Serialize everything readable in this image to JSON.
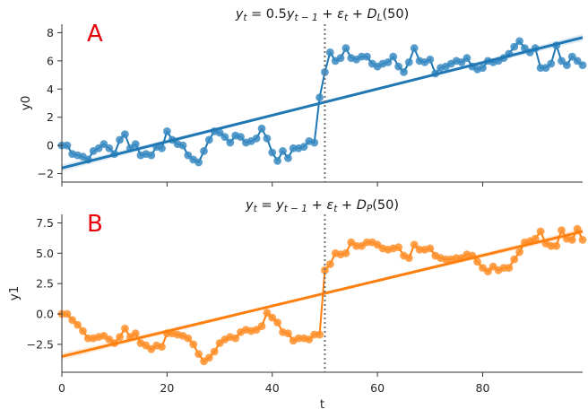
{
  "chart_data": [
    {
      "type": "line",
      "panel_label": "A",
      "title": "y_t = 0.5y_{t-1} + ε_t + D_L(50)",
      "title_parts": [
        "y",
        "t",
        " = 0.5",
        "y",
        "t − 1",
        " + ",
        "ε",
        "t",
        " + ",
        "D",
        "L",
        "(50)"
      ],
      "xlabel": "",
      "ylabel": "y0",
      "xlim": [
        0,
        99
      ],
      "ylim": [
        -2.6,
        8.6
      ],
      "xticks": [
        0,
        20,
        40,
        60,
        80
      ],
      "yticks": [
        -2,
        0,
        2,
        4,
        6,
        8
      ],
      "ytick_labels": [
        "−2",
        "0",
        "2",
        "4",
        "6",
        "8"
      ],
      "vline_x": 50,
      "color": "#1f77b4",
      "marker_color": "#3a8bc2",
      "panel_label_color": "#e8000b",
      "series": [
        {
          "x": [
            0,
            1,
            2,
            3,
            4,
            5,
            6,
            7,
            8,
            9,
            10,
            11,
            12,
            13,
            14,
            15,
            16,
            17,
            18,
            19,
            20,
            21,
            22,
            23,
            24,
            25,
            26,
            27,
            28,
            29,
            30,
            31,
            32,
            33,
            34,
            35,
            36,
            37,
            38,
            39,
            40,
            41,
            42,
            43,
            44,
            45,
            46,
            47,
            48,
            49,
            50,
            51,
            52,
            53,
            54,
            55,
            56,
            57,
            58,
            59,
            60,
            61,
            62,
            63,
            64,
            65,
            66,
            67,
            68,
            69,
            70,
            71,
            72,
            73,
            74,
            75,
            76,
            77,
            78,
            79,
            80,
            81,
            82,
            83,
            84,
            85,
            86,
            87,
            88,
            89,
            90,
            91,
            92,
            93,
            94,
            95,
            96,
            97,
            98,
            99
          ],
          "values": [
            0.0,
            0.0,
            -0.6,
            -0.7,
            -0.8,
            -1.0,
            -0.4,
            -0.2,
            0.1,
            -0.2,
            -0.6,
            0.4,
            0.8,
            -0.2,
            0.1,
            -0.7,
            -0.6,
            -0.7,
            -0.1,
            -0.2,
            1.0,
            0.4,
            0.1,
            0.0,
            -0.7,
            -1.0,
            -1.2,
            -0.4,
            0.4,
            1.0,
            0.9,
            0.6,
            0.2,
            0.7,
            0.6,
            0.2,
            0.3,
            0.5,
            1.2,
            0.5,
            -0.5,
            -1.1,
            -0.4,
            -0.9,
            -0.2,
            -0.2,
            -0.1,
            0.3,
            0.2,
            3.4,
            5.2,
            6.6,
            6.0,
            6.2,
            6.9,
            6.2,
            6.1,
            6.3,
            6.3,
            5.8,
            5.6,
            5.8,
            5.9,
            6.3,
            5.6,
            5.2,
            5.9,
            6.9,
            6.0,
            5.9,
            6.1,
            5.1,
            5.5,
            5.6,
            5.8,
            6.0,
            5.9,
            6.2,
            5.6,
            5.4,
            5.5,
            6.0,
            5.9,
            6.0,
            6.2,
            6.5,
            7.0,
            7.4,
            6.9,
            6.6,
            6.9,
            5.5,
            5.5,
            5.8,
            7.1,
            6.0,
            5.7,
            6.3,
            6.0,
            5.7
          ]
        }
      ],
      "regression": {
        "intercept": -1.6,
        "slope": 0.0935,
        "band": 0.25
      }
    },
    {
      "type": "line",
      "panel_label": "B",
      "title": "y_t = y_{t-1} + ε_t + D_P(50)",
      "title_parts": [
        "y",
        "t",
        " = ",
        "y",
        "t − 1",
        " + ",
        "ε",
        "t",
        " + ",
        "D",
        "P",
        "(50)"
      ],
      "xlabel": "t",
      "ylabel": "y1",
      "xlim": [
        0,
        99
      ],
      "ylim": [
        -4.8,
        8.2
      ],
      "xticks": [
        0,
        20,
        40,
        60,
        80
      ],
      "yticks": [
        -2.5,
        0.0,
        2.5,
        5.0,
        7.5
      ],
      "ytick_labels": [
        "−2.5",
        "0.0",
        "2.5",
        "5.0",
        "7.5"
      ],
      "vline_x": 50,
      "color": "#ff7f0e",
      "marker_color": "#ff8f2a",
      "panel_label_color": "#e8000b",
      "series": [
        {
          "x": [
            0,
            1,
            2,
            3,
            4,
            5,
            6,
            7,
            8,
            9,
            10,
            11,
            12,
            13,
            14,
            15,
            16,
            17,
            18,
            19,
            20,
            21,
            22,
            23,
            24,
            25,
            26,
            27,
            28,
            29,
            30,
            31,
            32,
            33,
            34,
            35,
            36,
            37,
            38,
            39,
            40,
            41,
            42,
            43,
            44,
            45,
            46,
            47,
            48,
            49,
            50,
            51,
            52,
            53,
            54,
            55,
            56,
            57,
            58,
            59,
            60,
            61,
            62,
            63,
            64,
            65,
            66,
            67,
            68,
            69,
            70,
            71,
            72,
            73,
            74,
            75,
            76,
            77,
            78,
            79,
            80,
            81,
            82,
            83,
            84,
            85,
            86,
            87,
            88,
            89,
            90,
            91,
            92,
            93,
            94,
            95,
            96,
            97,
            98,
            99
          ],
          "values": [
            0.0,
            0.0,
            -0.5,
            -0.9,
            -1.4,
            -2.0,
            -2.0,
            -1.9,
            -1.8,
            -2.1,
            -2.4,
            -1.9,
            -1.2,
            -1.9,
            -1.6,
            -2.4,
            -2.6,
            -2.9,
            -2.6,
            -2.7,
            -1.6,
            -1.6,
            -1.7,
            -1.8,
            -2.0,
            -2.5,
            -3.3,
            -3.9,
            -3.6,
            -3.1,
            -2.4,
            -2.1,
            -1.9,
            -2.0,
            -1.5,
            -1.3,
            -1.4,
            -1.3,
            -1.0,
            0.1,
            -0.3,
            -0.7,
            -1.5,
            -1.6,
            -2.2,
            -2.0,
            -2.0,
            -2.1,
            -1.7,
            -1.7,
            3.6,
            4.1,
            5.0,
            4.9,
            5.0,
            5.9,
            5.6,
            5.6,
            5.9,
            5.9,
            5.7,
            5.4,
            5.3,
            5.4,
            5.5,
            4.8,
            4.6,
            5.7,
            5.3,
            5.3,
            5.4,
            4.8,
            4.6,
            4.5,
            4.5,
            4.6,
            4.6,
            4.9,
            4.8,
            4.3,
            3.8,
            3.5,
            3.9,
            3.6,
            3.8,
            3.8,
            4.5,
            5.1,
            5.9,
            6.0,
            6.2,
            6.8,
            5.8,
            5.6,
            5.6,
            6.9,
            6.2,
            6.1,
            7.0,
            6.1
          ]
        }
      ],
      "regression": {
        "intercept": -3.5,
        "slope": 0.104,
        "band": 0.3
      }
    }
  ]
}
